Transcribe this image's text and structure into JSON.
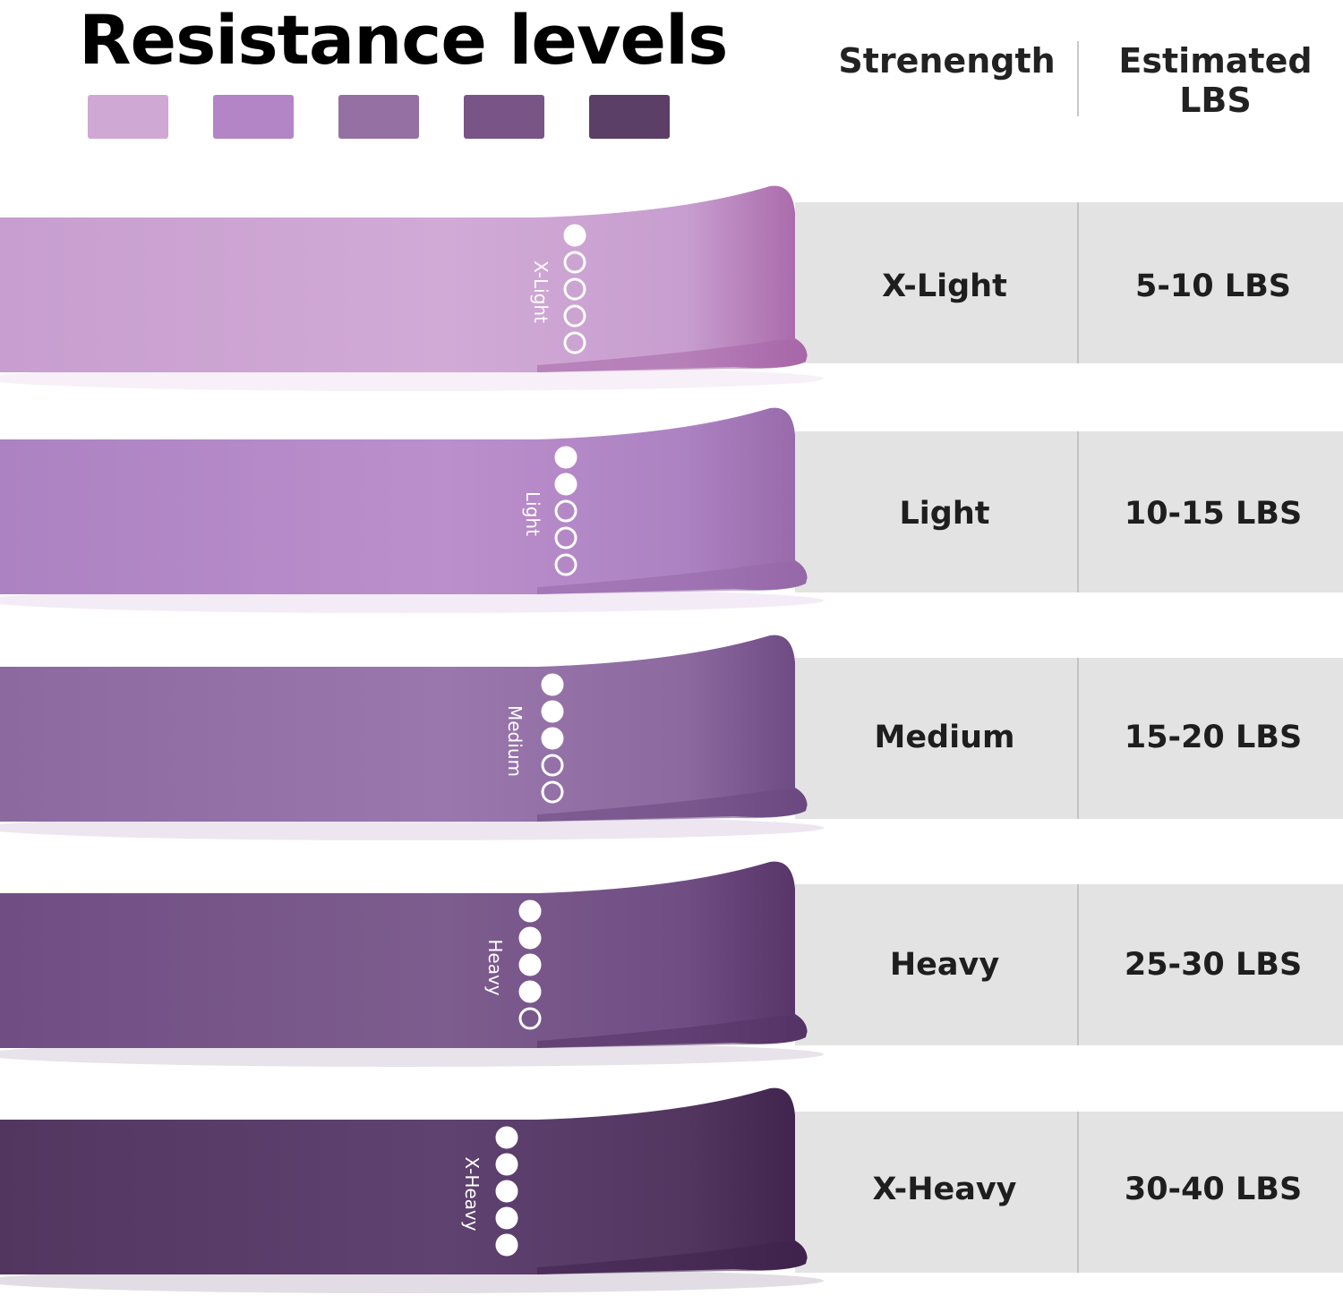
{
  "title": "Resistance levels",
  "swatches": [
    {
      "color": "#d0a8d4"
    },
    {
      "color": "#b384c6"
    },
    {
      "color": "#9570a3"
    },
    {
      "color": "#785487"
    },
    {
      "color": "#5b3f66"
    }
  ],
  "columns": {
    "strength_header": "Strenength",
    "lbs_header_line1": "Estimated",
    "lbs_header_line2": "LBS"
  },
  "bands": [
    {
      "label": "X-Light",
      "strength": "X-Light",
      "lbs": "5-10  LBS",
      "filled_dots": 1,
      "total_dots": 5,
      "color_light": "#d2aad6",
      "color_mid": "#c79ecf",
      "color_dark": "#a866a8"
    },
    {
      "label": "Light",
      "strength": "Light",
      "lbs": "10-15 LBS",
      "filled_dots": 2,
      "total_dots": 5,
      "color_light": "#bb8fcb",
      "color_mid": "#ad82c2",
      "color_dark": "#9668a8"
    },
    {
      "label": "Medium",
      "strength": "Medium",
      "lbs": "15-20 LBS",
      "filled_dots": 3,
      "total_dots": 5,
      "color_light": "#9a77ad",
      "color_mid": "#8c6aa0",
      "color_dark": "#6b4880"
    },
    {
      "label": "Heavy",
      "strength": "Heavy",
      "lbs": "25-30 LBS",
      "filled_dots": 4,
      "total_dots": 5,
      "color_light": "#7d5c8e",
      "color_mid": "#704e84",
      "color_dark": "#553366"
    },
    {
      "label": "X-Heavy",
      "strength": "X-Heavy",
      "lbs": "30-40 LBS",
      "filled_dots": 5,
      "total_dots": 5,
      "color_light": "#5f4270",
      "color_mid": "#533660",
      "color_dark": "#3f234c"
    }
  ]
}
